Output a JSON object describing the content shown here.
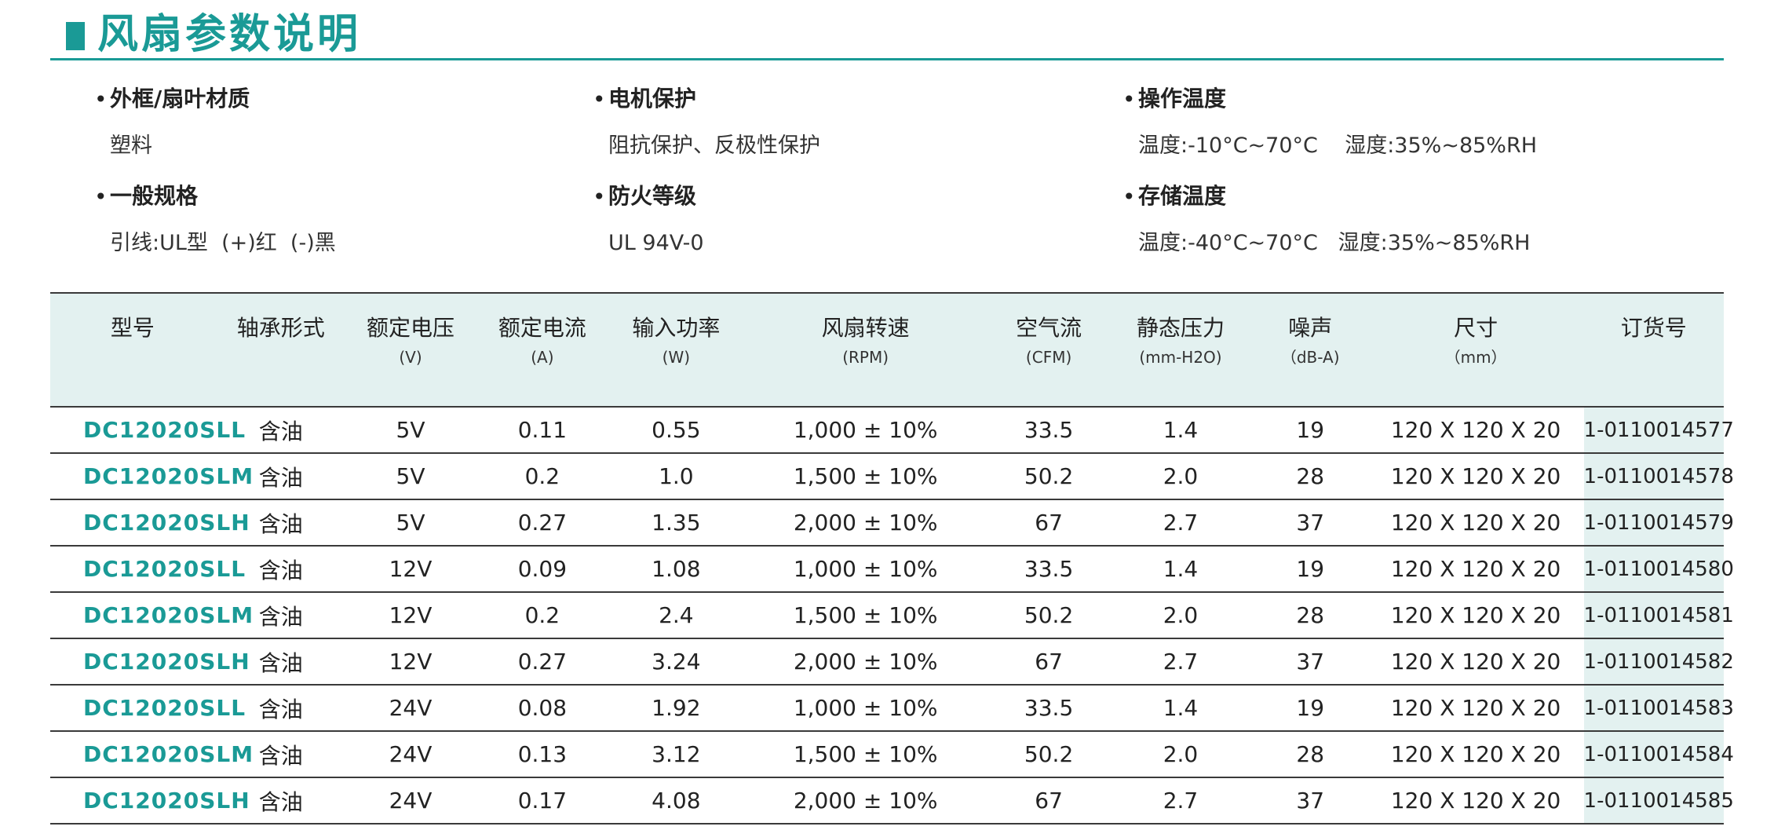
{
  "title": "风扇参数说明",
  "specs": {
    "frame_material": {
      "label": "外框/扇叶材质",
      "value": "塑料"
    },
    "general": {
      "label": "一般规格",
      "value": "引线:UL型  (+)红  (-)黑"
    },
    "motor_protection": {
      "label": "电机保护",
      "value": "阻抗保护、反极性保护"
    },
    "fire_rating": {
      "label": "防火等级",
      "value": "UL 94V-0"
    },
    "operating_temp": {
      "label": "操作温度",
      "value": "温度:-10°C~70°C    湿度:35%~85%RH"
    },
    "storage_temp": {
      "label": "存储温度",
      "value": "温度:-40°C~70°C   湿度:35%~85%RH"
    }
  },
  "table": {
    "headers": [
      {
        "main": "型号",
        "sub": ""
      },
      {
        "main": "轴承形式",
        "sub": ""
      },
      {
        "main": "额定电压",
        "sub": "(V)"
      },
      {
        "main": "额定电流",
        "sub": "(A)"
      },
      {
        "main": "输入功率",
        "sub": "(W)"
      },
      {
        "main": "风扇转速",
        "sub": "(RPM)"
      },
      {
        "main": "空气流",
        "sub": "(CFM)"
      },
      {
        "main": "静态压力",
        "sub": "(mm-H2O)"
      },
      {
        "main": "噪声",
        "sub": "（dB-A)"
      },
      {
        "main": "尺寸",
        "sub": "（mm）"
      },
      {
        "main": "订货号",
        "sub": ""
      }
    ],
    "rows": [
      [
        "DC12020SLL",
        "含油",
        "5V",
        "0.11",
        "0.55",
        "1,000 ± 10%",
        "33.5",
        "1.4",
        "19",
        "120 X 120 X 20",
        "1-0110014577"
      ],
      [
        "DC12020SLM",
        "含油",
        "5V",
        "0.2",
        "1.0",
        "1,500 ± 10%",
        "50.2",
        "2.0",
        "28",
        "120 X 120 X 20",
        "1-0110014578"
      ],
      [
        "DC12020SLH",
        "含油",
        "5V",
        "0.27",
        "1.35",
        "2,000 ± 10%",
        "67",
        "2.7",
        "37",
        "120 X 120 X 20",
        "1-0110014579"
      ],
      [
        "DC12020SLL",
        "含油",
        "12V",
        "0.09",
        "1.08",
        "1,000 ± 10%",
        "33.5",
        "1.4",
        "19",
        "120 X 120 X 20",
        "1-0110014580"
      ],
      [
        "DC12020SLM",
        "含油",
        "12V",
        "0.2",
        "2.4",
        "1,500 ± 10%",
        "50.2",
        "2.0",
        "28",
        "120 X 120 X 20",
        "1-0110014581"
      ],
      [
        "DC12020SLH",
        "含油",
        "12V",
        "0.27",
        "3.24",
        "2,000 ± 10%",
        "67",
        "2.7",
        "37",
        "120 X 120 X 20",
        "1-0110014582"
      ],
      [
        "DC12020SLL",
        "含油",
        "24V",
        "0.08",
        "1.92",
        "1,000 ± 10%",
        "33.5",
        "1.4",
        "19",
        "120 X 120 X 20",
        "1-0110014583"
      ],
      [
        "DC12020SLM",
        "含油",
        "24V",
        "0.13",
        "3.12",
        "1,500 ± 10%",
        "50.2",
        "2.0",
        "28",
        "120 X 120 X 20",
        "1-0110014584"
      ],
      [
        "DC12020SLH",
        "含油",
        "24V",
        "0.17",
        "4.08",
        "2,000 ± 10%",
        "67",
        "2.7",
        "37",
        "120 X 120 X 20",
        "1-0110014585"
      ]
    ]
  },
  "colors": {
    "accent": "#1a9a96",
    "header_bg": "#e3f1f0",
    "rule": "#3a3a3a"
  }
}
